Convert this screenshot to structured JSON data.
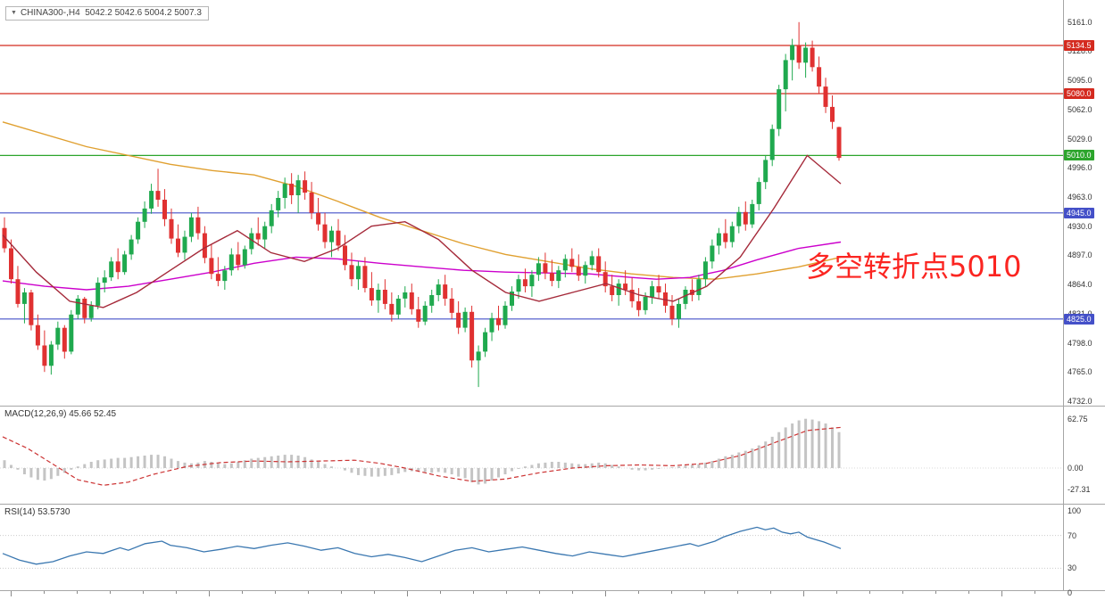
{
  "title_bar": {
    "symbol": "CHINA300-,H4",
    "ohlc": "5042.2 5042.6 5004.2 5007.3",
    "collapse_icon": "triangle-down"
  },
  "annotation": {
    "text": "多空转折点5010",
    "color": "#fb2521"
  },
  "colors": {
    "up": "#1fa94e",
    "down": "#e03131",
    "ma_slow": "#e0a030",
    "ma_mid": "#cc00cc",
    "ma_fast": "#a52a3a",
    "level_red": "#d42a1f",
    "level_green": "#2ca52c",
    "level_blue": "#4450c8",
    "macd_hist": "#c4c4c4",
    "macd_signal": "#cc3333",
    "rsi_line": "#3a77b0",
    "axis_text": "#333333",
    "separator": "#a6a6a6"
  },
  "main_axis": {
    "labels": [
      "5161.0",
      "5128.0",
      "5095.0",
      "5062.0",
      "5029.0",
      "4996.0",
      "4963.0",
      "4930.0",
      "4897.0",
      "4864.0",
      "4831.0",
      "4798.0",
      "4765.0",
      "4732.0"
    ]
  },
  "levels": [
    {
      "label": "5134.5",
      "price": 5134.5,
      "color_key": "level_red"
    },
    {
      "label": "5080.0",
      "price": 5080.0,
      "color_key": "level_red"
    },
    {
      "label": "5010.0",
      "price": 5010.0,
      "color_key": "level_green"
    },
    {
      "label": "4945.0",
      "price": 4945.0,
      "color_key": "level_blue"
    },
    {
      "label": "4825.0",
      "price": 4825.0,
      "color_key": "level_blue"
    }
  ],
  "macd": {
    "label": "MACD(12,26,9) 45.66 52.45",
    "value_main": 45.66,
    "value_signal": 52.45,
    "axis_labels": [
      "62.75",
      "0.00",
      "-27.31"
    ]
  },
  "rsi": {
    "label": "RSI(14) 53.5730",
    "value": 53.573,
    "axis_labels": [
      "100",
      "70",
      "30",
      "0"
    ]
  },
  "chart_data": {
    "type": "candlestick",
    "symbol": "CHINA300-",
    "timeframe": "H4",
    "title": "CHINA300-,H4 5042.2 5042.6 5004.2 5007.3",
    "last_ohlc": {
      "open": 5042.2,
      "high": 5042.6,
      "low": 5004.2,
      "close": 5007.3
    },
    "price_axis": {
      "min": 4732,
      "max": 5161,
      "tick_step": 33
    },
    "horizontal_levels": [
      5134.5,
      5080.0,
      5010.0,
      4945.0,
      4825.0
    ],
    "indicators": {
      "macd_main": 45.66,
      "macd_signal": 52.45,
      "rsi": 53.573
    },
    "candles": [
      [
        4928,
        4940,
        4900,
        4905
      ],
      [
        4905,
        4915,
        4865,
        4870
      ],
      [
        4870,
        4885,
        4838,
        4842
      ],
      [
        4842,
        4860,
        4820,
        4855
      ],
      [
        4855,
        4858,
        4812,
        4818
      ],
      [
        4818,
        4830,
        4790,
        4795
      ],
      [
        4795,
        4812,
        4765,
        4772
      ],
      [
        4772,
        4800,
        4762,
        4796
      ],
      [
        4796,
        4822,
        4790,
        4815
      ],
      [
        4815,
        4818,
        4780,
        4788
      ],
      [
        4788,
        4835,
        4785,
        4830
      ],
      [
        4830,
        4852,
        4825,
        4848
      ],
      [
        4848,
        4850,
        4820,
        4826
      ],
      [
        4826,
        4845,
        4822,
        4840
      ],
      [
        4840,
        4872,
        4836,
        4866
      ],
      [
        4866,
        4880,
        4855,
        4872
      ],
      [
        4872,
        4895,
        4868,
        4890
      ],
      [
        4890,
        4905,
        4870,
        4878
      ],
      [
        4878,
        4902,
        4875,
        4898
      ],
      [
        4898,
        4920,
        4892,
        4915
      ],
      [
        4915,
        4940,
        4910,
        4935
      ],
      [
        4935,
        4958,
        4928,
        4950
      ],
      [
        4950,
        4978,
        4944,
        4970
      ],
      [
        4970,
        4995,
        4952,
        4960
      ],
      [
        4960,
        4972,
        4930,
        4938
      ],
      [
        4938,
        4950,
        4910,
        4916
      ],
      [
        4916,
        4932,
        4895,
        4900
      ],
      [
        4900,
        4925,
        4892,
        4918
      ],
      [
        4918,
        4945,
        4912,
        4940
      ],
      [
        4940,
        4952,
        4915,
        4922
      ],
      [
        4922,
        4930,
        4888,
        4894
      ],
      [
        4894,
        4910,
        4870,
        4876
      ],
      [
        4876,
        4895,
        4862,
        4868
      ],
      [
        4868,
        4885,
        4858,
        4880
      ],
      [
        4880,
        4905,
        4874,
        4898
      ],
      [
        4898,
        4912,
        4880,
        4886
      ],
      [
        4886,
        4908,
        4882,
        4904
      ],
      [
        4904,
        4928,
        4898,
        4922
      ],
      [
        4922,
        4940,
        4908,
        4915
      ],
      [
        4915,
        4935,
        4905,
        4930
      ],
      [
        4930,
        4955,
        4922,
        4948
      ],
      [
        4948,
        4970,
        4940,
        4962
      ],
      [
        4962,
        4985,
        4950,
        4978
      ],
      [
        4978,
        4990,
        4955,
        4965
      ],
      [
        4965,
        4988,
        4945,
        4982
      ],
      [
        4982,
        4992,
        4960,
        4968
      ],
      [
        4968,
        4980,
        4938,
        4945
      ],
      [
        4945,
        4962,
        4925,
        4932
      ],
      [
        4932,
        4945,
        4905,
        4912
      ],
      [
        4912,
        4930,
        4895,
        4925
      ],
      [
        4925,
        4938,
        4902,
        4908
      ],
      [
        4908,
        4920,
        4880,
        4886
      ],
      [
        4886,
        4900,
        4862,
        4870
      ],
      [
        4870,
        4890,
        4858,
        4885
      ],
      [
        4885,
        4895,
        4855,
        4860
      ],
      [
        4860,
        4878,
        4840,
        4846
      ],
      [
        4846,
        4865,
        4832,
        4858
      ],
      [
        4858,
        4870,
        4836,
        4842
      ],
      [
        4842,
        4855,
        4822,
        4830
      ],
      [
        4830,
        4852,
        4825,
        4848
      ],
      [
        4848,
        4862,
        4838,
        4855
      ],
      [
        4855,
        4865,
        4830,
        4836
      ],
      [
        4836,
        4850,
        4815,
        4822
      ],
      [
        4822,
        4845,
        4818,
        4840
      ],
      [
        4840,
        4858,
        4832,
        4852
      ],
      [
        4852,
        4870,
        4845,
        4864
      ],
      [
        4864,
        4875,
        4840,
        4848
      ],
      [
        4848,
        4860,
        4825,
        4832
      ],
      [
        4832,
        4845,
        4808,
        4815
      ],
      [
        4815,
        4838,
        4810,
        4833
      ],
      [
        4833,
        4840,
        4770,
        4778
      ],
      [
        4778,
        4795,
        4748,
        4788
      ],
      [
        4788,
        4815,
        4782,
        4810
      ],
      [
        4810,
        4832,
        4800,
        4826
      ],
      [
        4826,
        4840,
        4812,
        4818
      ],
      [
        4818,
        4845,
        4814,
        4840
      ],
      [
        4840,
        4862,
        4834,
        4856
      ],
      [
        4856,
        4875,
        4848,
        4870
      ],
      [
        4870,
        4882,
        4855,
        4862
      ],
      [
        4862,
        4880,
        4850,
        4875
      ],
      [
        4875,
        4895,
        4868,
        4888
      ],
      [
        4888,
        4900,
        4870,
        4877
      ],
      [
        4877,
        4892,
        4862,
        4868
      ],
      [
        4868,
        4885,
        4860,
        4880
      ],
      [
        4880,
        4898,
        4872,
        4893
      ],
      [
        4893,
        4905,
        4878,
        4884
      ],
      [
        4884,
        4898,
        4868,
        4874
      ],
      [
        4874,
        4890,
        4865,
        4886
      ],
      [
        4886,
        4902,
        4880,
        4896
      ],
      [
        4896,
        4905,
        4872,
        4878
      ],
      [
        4878,
        4890,
        4855,
        4862
      ],
      [
        4862,
        4875,
        4845,
        4852
      ],
      [
        4852,
        4870,
        4840,
        4865
      ],
      [
        4865,
        4880,
        4852,
        4858
      ],
      [
        4858,
        4872,
        4838,
        4845
      ],
      [
        4845,
        4860,
        4828,
        4835
      ],
      [
        4835,
        4855,
        4830,
        4850
      ],
      [
        4850,
        4868,
        4842,
        4862
      ],
      [
        4862,
        4875,
        4848,
        4855
      ],
      [
        4855,
        4865,
        4832,
        4840
      ],
      [
        4840,
        4852,
        4818,
        4825
      ],
      [
        4825,
        4848,
        4815,
        4842
      ],
      [
        4842,
        4862,
        4836,
        4858
      ],
      [
        4858,
        4870,
        4845,
        4852
      ],
      [
        4852,
        4875,
        4846,
        4870
      ],
      [
        4870,
        4895,
        4862,
        4890
      ],
      [
        4890,
        4915,
        4882,
        4908
      ],
      [
        4908,
        4928,
        4898,
        4922
      ],
      [
        4922,
        4938,
        4905,
        4912
      ],
      [
        4912,
        4935,
        4906,
        4930
      ],
      [
        4930,
        4952,
        4922,
        4946
      ],
      [
        4946,
        4958,
        4925,
        4932
      ],
      [
        4932,
        4960,
        4928,
        4955
      ],
      [
        4955,
        4985,
        4948,
        4980
      ],
      [
        4980,
        5010,
        4972,
        5005
      ],
      [
        5005,
        5045,
        4998,
        5040
      ],
      [
        5040,
        5090,
        5032,
        5085
      ],
      [
        5085,
        5125,
        5060,
        5118
      ],
      [
        5118,
        5142,
        5095,
        5135
      ],
      [
        5135,
        5161,
        5108,
        5115
      ],
      [
        5115,
        5138,
        5098,
        5132
      ],
      [
        5132,
        5140,
        5105,
        5110
      ],
      [
        5110,
        5122,
        5080,
        5088
      ],
      [
        5088,
        5098,
        5058,
        5065
      ],
      [
        5065,
        5078,
        5040,
        5048
      ],
      [
        5042.2,
        5042.6,
        5004.2,
        5007.3
      ]
    ],
    "ma_slow_points": [
      [
        0,
        5048
      ],
      [
        0.1,
        5020
      ],
      [
        0.2,
        5000
      ],
      [
        0.25,
        4993
      ],
      [
        0.3,
        4988
      ],
      [
        0.35,
        4975
      ],
      [
        0.4,
        4958
      ],
      [
        0.45,
        4940
      ],
      [
        0.5,
        4925
      ],
      [
        0.55,
        4910
      ],
      [
        0.6,
        4898
      ],
      [
        0.65,
        4890
      ],
      [
        0.7,
        4882
      ],
      [
        0.75,
        4876
      ],
      [
        0.8,
        4872
      ],
      [
        0.85,
        4870
      ],
      [
        0.9,
        4876
      ],
      [
        0.95,
        4884
      ],
      [
        1,
        4895
      ]
    ],
    "ma_mid_points": [
      [
        0,
        4868
      ],
      [
        0.05,
        4862
      ],
      [
        0.1,
        4858
      ],
      [
        0.15,
        4862
      ],
      [
        0.2,
        4870
      ],
      [
        0.25,
        4878
      ],
      [
        0.3,
        4888
      ],
      [
        0.35,
        4895
      ],
      [
        0.4,
        4893
      ],
      [
        0.45,
        4888
      ],
      [
        0.5,
        4884
      ],
      [
        0.55,
        4880
      ],
      [
        0.6,
        4878
      ],
      [
        0.65,
        4877
      ],
      [
        0.7,
        4876
      ],
      [
        0.75,
        4872
      ],
      [
        0.78,
        4870
      ],
      [
        0.82,
        4872
      ],
      [
        0.86,
        4880
      ],
      [
        0.9,
        4892
      ],
      [
        0.95,
        4905
      ],
      [
        1,
        4912
      ]
    ],
    "ma_fast_points": [
      [
        0,
        4920
      ],
      [
        0.04,
        4878
      ],
      [
        0.08,
        4845
      ],
      [
        0.12,
        4838
      ],
      [
        0.16,
        4855
      ],
      [
        0.2,
        4880
      ],
      [
        0.24,
        4905
      ],
      [
        0.28,
        4925
      ],
      [
        0.32,
        4900
      ],
      [
        0.36,
        4890
      ],
      [
        0.4,
        4905
      ],
      [
        0.44,
        4930
      ],
      [
        0.48,
        4935
      ],
      [
        0.52,
        4915
      ],
      [
        0.56,
        4880
      ],
      [
        0.6,
        4855
      ],
      [
        0.64,
        4845
      ],
      [
        0.68,
        4855
      ],
      [
        0.72,
        4865
      ],
      [
        0.76,
        4852
      ],
      [
        0.8,
        4845
      ],
      [
        0.84,
        4862
      ],
      [
        0.88,
        4895
      ],
      [
        0.92,
        4950
      ],
      [
        0.96,
        5010
      ],
      [
        1,
        4978
      ]
    ],
    "macd_histogram": [
      10,
      4,
      -2,
      -8,
      -12,
      -15,
      -16,
      -14,
      -10,
      -6,
      -2,
      2,
      5,
      8,
      10,
      11,
      12,
      13,
      13,
      14,
      15,
      16,
      17,
      17,
      15,
      12,
      9,
      7,
      6,
      7,
      9,
      8,
      6,
      5,
      6,
      8,
      10,
      12,
      13,
      14,
      15,
      16,
      17,
      17,
      16,
      14,
      11,
      8,
      5,
      2,
      0,
      -3,
      -6,
      -9,
      -10,
      -11,
      -11,
      -10,
      -9,
      -7,
      -5,
      -4,
      -4,
      -5,
      -6,
      -5,
      -6,
      -8,
      -11,
      -13,
      -18,
      -21,
      -20,
      -16,
      -12,
      -8,
      -4,
      -1,
      2,
      4,
      6,
      7,
      8,
      8,
      7,
      6,
      5,
      5,
      6,
      7,
      6,
      4,
      2,
      0,
      -2,
      -3,
      -3,
      -2,
      -1,
      0,
      1,
      2,
      3,
      4,
      5,
      7,
      9,
      12,
      15,
      17,
      20,
      22,
      25,
      29,
      34,
      40,
      46,
      52,
      57,
      61,
      63,
      62,
      60,
      57,
      52,
      46
    ],
    "macd_signal_points": [
      [
        0,
        40
      ],
      [
        0.03,
        25
      ],
      [
        0.06,
        5
      ],
      [
        0.09,
        -15
      ],
      [
        0.12,
        -22
      ],
      [
        0.15,
        -18
      ],
      [
        0.18,
        -8
      ],
      [
        0.22,
        2
      ],
      [
        0.26,
        7
      ],
      [
        0.3,
        9
      ],
      [
        0.34,
        8
      ],
      [
        0.38,
        9
      ],
      [
        0.42,
        10
      ],
      [
        0.45,
        6
      ],
      [
        0.48,
        0
      ],
      [
        0.52,
        -10
      ],
      [
        0.56,
        -17
      ],
      [
        0.6,
        -14
      ],
      [
        0.64,
        -6
      ],
      [
        0.68,
        0
      ],
      [
        0.72,
        3
      ],
      [
        0.76,
        4
      ],
      [
        0.8,
        3
      ],
      [
        0.84,
        6
      ],
      [
        0.88,
        16
      ],
      [
        0.92,
        32
      ],
      [
        0.96,
        48
      ],
      [
        1,
        52
      ]
    ],
    "rsi_points": [
      [
        0,
        48
      ],
      [
        0.02,
        40
      ],
      [
        0.04,
        35
      ],
      [
        0.06,
        38
      ],
      [
        0.08,
        45
      ],
      [
        0.1,
        50
      ],
      [
        0.12,
        48
      ],
      [
        0.14,
        55
      ],
      [
        0.15,
        52
      ],
      [
        0.17,
        60
      ],
      [
        0.19,
        63
      ],
      [
        0.2,
        58
      ],
      [
        0.22,
        55
      ],
      [
        0.24,
        50
      ],
      [
        0.26,
        53
      ],
      [
        0.28,
        57
      ],
      [
        0.3,
        54
      ],
      [
        0.32,
        58
      ],
      [
        0.34,
        61
      ],
      [
        0.36,
        57
      ],
      [
        0.38,
        52
      ],
      [
        0.4,
        55
      ],
      [
        0.42,
        48
      ],
      [
        0.44,
        44
      ],
      [
        0.46,
        47
      ],
      [
        0.48,
        43
      ],
      [
        0.5,
        38
      ],
      [
        0.52,
        45
      ],
      [
        0.54,
        52
      ],
      [
        0.56,
        55
      ],
      [
        0.58,
        50
      ],
      [
        0.6,
        53
      ],
      [
        0.62,
        56
      ],
      [
        0.64,
        52
      ],
      [
        0.66,
        48
      ],
      [
        0.68,
        45
      ],
      [
        0.7,
        50
      ],
      [
        0.72,
        47
      ],
      [
        0.74,
        44
      ],
      [
        0.76,
        48
      ],
      [
        0.78,
        52
      ],
      [
        0.8,
        56
      ],
      [
        0.82,
        60
      ],
      [
        0.83,
        57
      ],
      [
        0.85,
        63
      ],
      [
        0.86,
        68
      ],
      [
        0.88,
        75
      ],
      [
        0.9,
        80
      ],
      [
        0.91,
        77
      ],
      [
        0.92,
        79
      ],
      [
        0.93,
        74
      ],
      [
        0.94,
        72
      ],
      [
        0.95,
        74
      ],
      [
        0.96,
        68
      ],
      [
        0.97,
        65
      ],
      [
        0.98,
        62
      ],
      [
        1,
        54
      ]
    ]
  }
}
